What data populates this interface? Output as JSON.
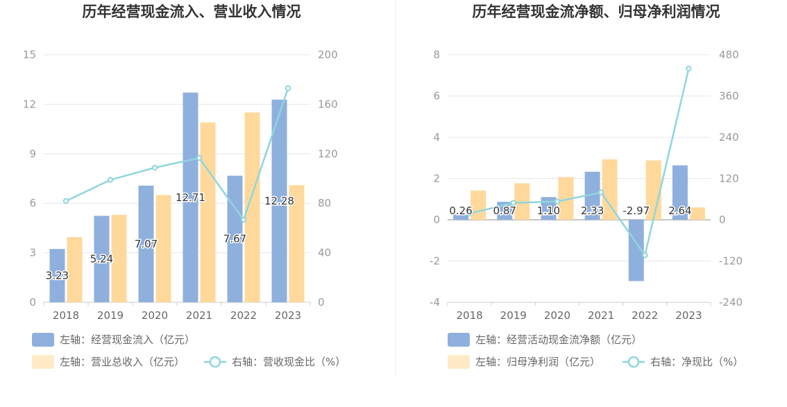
{
  "chart_data": [
    {
      "type": "bar",
      "title": "历年经营现金流入、营业收入情况",
      "categories": [
        "2018",
        "2019",
        "2020",
        "2021",
        "2022",
        "2023"
      ],
      "y_left": {
        "ticks": [
          "0",
          "3",
          "6",
          "9",
          "12",
          "15"
        ],
        "ylim": [
          0,
          15
        ]
      },
      "y_right": {
        "ticks": [
          "0",
          "40",
          "80",
          "120",
          "160",
          "200"
        ],
        "ylim": [
          0,
          200
        ]
      },
      "series": [
        {
          "name": "左轴：经营现金流入（亿元）",
          "kind": "bar",
          "axis": "left",
          "color": "#8fb0dd",
          "values": [
            3.23,
            5.24,
            7.07,
            12.71,
            7.67,
            12.28
          ],
          "labels": [
            "3.23",
            "5.24",
            "7.07",
            "12.71",
            "7.67",
            "12.28"
          ]
        },
        {
          "name": "左轴：营业总收入（亿元）",
          "kind": "bar",
          "axis": "left",
          "color": "#ffd99b",
          "values": [
            3.95,
            5.3,
            6.5,
            10.9,
            11.5,
            7.1
          ]
        },
        {
          "name": "右轴：营收现金比（%）",
          "kind": "line",
          "axis": "right",
          "color": "#8ed6dd",
          "values": [
            81.8,
            98.9,
            108.8,
            116.6,
            66.7,
            172.9
          ]
        }
      ],
      "grid": true,
      "legend": "bottom"
    },
    {
      "type": "bar",
      "title": "历年经营现金流净额、归母净利润情况",
      "categories": [
        "2018",
        "2019",
        "2020",
        "2021",
        "2022",
        "2023"
      ],
      "y_left": {
        "ticks": [
          "-4",
          "-2",
          "0",
          "2",
          "4",
          "6",
          "8"
        ],
        "ylim": [
          -4,
          8
        ]
      },
      "y_right": {
        "ticks": [
          "-240",
          "-120",
          "0",
          "120",
          "240",
          "360",
          "480"
        ],
        "ylim": [
          -240,
          480
        ]
      },
      "series": [
        {
          "name": "左轴：经营活动现金流净额（亿元）",
          "kind": "bar",
          "axis": "left",
          "color": "#8fb0dd",
          "values": [
            0.26,
            0.87,
            1.1,
            2.33,
            -2.97,
            2.64
          ],
          "labels": [
            "0.26",
            "0.87",
            "1.10",
            "2.33",
            "-2.97",
            "2.64"
          ]
        },
        {
          "name": "左轴：归母净利润（亿元）",
          "kind": "bar",
          "axis": "left",
          "color": "#ffd99b",
          "values": [
            1.42,
            1.77,
            2.07,
            2.93,
            2.88,
            0.6
          ]
        },
        {
          "name": "右轴：净现比（%）",
          "kind": "line",
          "axis": "right",
          "color": "#8ed6dd",
          "values": [
            18.3,
            49.2,
            53.2,
            79.5,
            -103.1,
            440
          ]
        }
      ],
      "grid": true,
      "legend": "bottom"
    }
  ]
}
